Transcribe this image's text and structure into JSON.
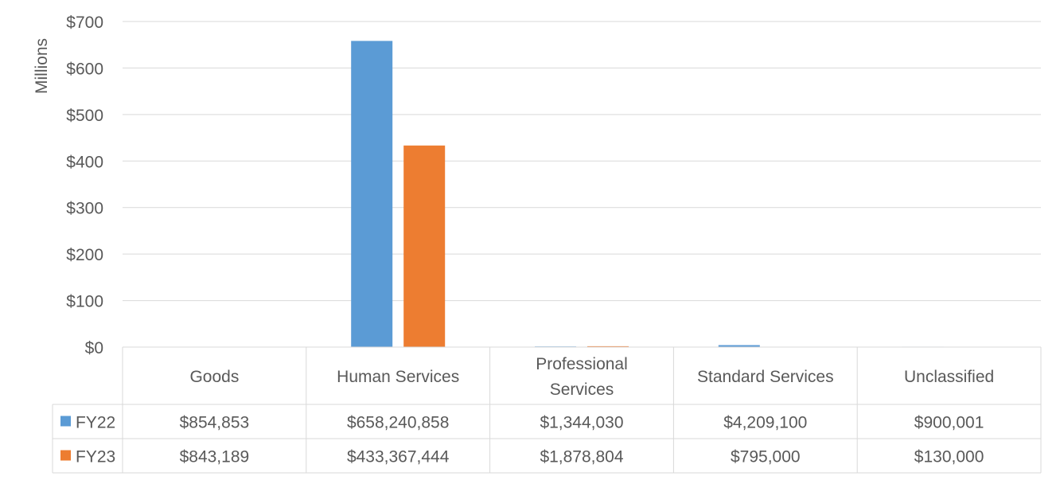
{
  "chart_data": {
    "type": "bar",
    "ylabel": "Millions",
    "ylim": [
      0,
      700
    ],
    "ytick_values": [
      0,
      100,
      200,
      300,
      400,
      500,
      600,
      700
    ],
    "ytick_labels": [
      "$0",
      "$100",
      "$200",
      "$300",
      "$400",
      "$500",
      "$600",
      "$700"
    ],
    "grid": true,
    "categories": [
      "Goods",
      "Human Services",
      "Professional Services",
      "Standard Services",
      "Unclassified"
    ],
    "category_lines": [
      [
        "Goods"
      ],
      [
        "Human Services"
      ],
      [
        "Professional",
        "Services"
      ],
      [
        "Standard Services"
      ],
      [
        "Unclassified"
      ]
    ],
    "series": [
      {
        "name": "FY22",
        "color": "#5B9BD5",
        "values": [
          854853,
          658240858,
          1344030,
          4209100,
          900001
        ],
        "labels": [
          "$854,853",
          "$658,240,858",
          "$1,344,030",
          "$4,209,100",
          "$900,001"
        ]
      },
      {
        "name": "FY23",
        "color": "#ED7D31",
        "values": [
          843189,
          433367444,
          1878804,
          795000,
          130000
        ],
        "labels": [
          "$843,189",
          "$433,367,444",
          "$1,878,804",
          "$795,000",
          "$130,000"
        ]
      }
    ]
  }
}
